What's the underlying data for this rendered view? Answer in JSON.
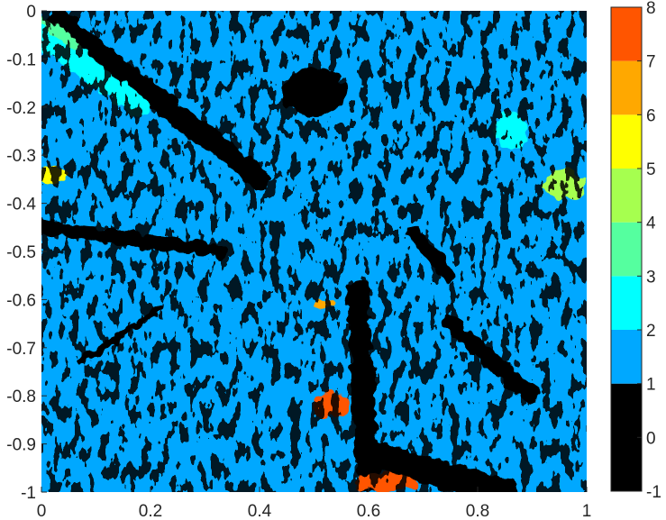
{
  "chart_data": {
    "type": "heatmap",
    "title": "",
    "xlabel": "",
    "ylabel": "",
    "xlim": [
      0,
      1
    ],
    "ylim": [
      -1,
      0
    ],
    "x_ticks": [
      "0",
      "0.2",
      "0.4",
      "0.6",
      "0.8",
      "1"
    ],
    "y_ticks": [
      "0",
      "-0.1",
      "-0.2",
      "-0.3",
      "-0.4",
      "-0.5",
      "-0.6",
      "-0.7",
      "-0.8",
      "-0.9",
      "-1"
    ],
    "grid": false,
    "colorbar": {
      "range": [
        -1,
        8
      ],
      "ticks": [
        "8",
        "7",
        "6",
        "5",
        "4",
        "3",
        "2",
        "1",
        "0",
        "-1"
      ],
      "levels": [
        {
          "from": -1,
          "to": 1,
          "color": "#000000"
        },
        {
          "from": 1,
          "to": 2,
          "color": "#00a8ff"
        },
        {
          "from": 2,
          "to": 3,
          "color": "#00ffff"
        },
        {
          "from": 3,
          "to": 4,
          "color": "#55ff9f"
        },
        {
          "from": 4,
          "to": 5,
          "color": "#a6ff4f"
        },
        {
          "from": 5,
          "to": 6,
          "color": "#ffff00"
        },
        {
          "from": 6,
          "to": 7,
          "color": "#ffa800"
        },
        {
          "from": 7,
          "to": 8,
          "color": "#ff5500"
        }
      ]
    },
    "dominant_level": {
      "value_range": [
        1,
        2
      ],
      "color": "#00a8ff"
    },
    "regions": [
      {
        "level": "black",
        "color": "#000000",
        "shape": "band",
        "points": [
          [
            0.03,
            -0.02
          ],
          [
            0.4,
            -0.35
          ]
        ],
        "width": 0.04
      },
      {
        "level": "black",
        "color": "#000000",
        "shape": "band",
        "points": [
          [
            0.0,
            -0.45
          ],
          [
            0.33,
            -0.5
          ]
        ],
        "width": 0.025
      },
      {
        "level": "black",
        "color": "#000000",
        "shape": "blob",
        "center": [
          0.5,
          -0.17
        ],
        "radius": [
          0.06,
          0.05
        ]
      },
      {
        "level": "black",
        "color": "#000000",
        "shape": "band",
        "points": [
          [
            0.58,
            -0.58
          ],
          [
            0.6,
            -0.98
          ]
        ],
        "width": 0.04
      },
      {
        "level": "black",
        "color": "#000000",
        "shape": "band",
        "points": [
          [
            0.6,
            -0.92
          ],
          [
            0.85,
            -1.0
          ]
        ],
        "width": 0.05
      },
      {
        "level": "black",
        "color": "#000000",
        "shape": "band",
        "points": [
          [
            0.07,
            -0.73
          ],
          [
            0.22,
            -0.62
          ]
        ],
        "width": 0.012
      },
      {
        "level": "black",
        "color": "#000000",
        "shape": "band",
        "points": [
          [
            0.75,
            -0.65
          ],
          [
            0.9,
            -0.8
          ]
        ],
        "width": 0.03
      },
      {
        "level": "black",
        "color": "#000000",
        "shape": "band",
        "points": [
          [
            0.68,
            -0.46
          ],
          [
            0.75,
            -0.55
          ]
        ],
        "width": 0.025
      },
      {
        "level": "cyan",
        "color": "#00ffff",
        "shape": "band",
        "points": [
          [
            0.0,
            -0.05
          ],
          [
            0.18,
            -0.2
          ]
        ],
        "width": 0.04
      },
      {
        "level": "green",
        "color": "#55ff9f",
        "shape": "band",
        "points": [
          [
            0.0,
            -0.02
          ],
          [
            0.06,
            -0.07
          ]
        ],
        "width": 0.02
      },
      {
        "level": "cyan",
        "color": "#00ffff",
        "shape": "blob",
        "center": [
          0.86,
          -0.25
        ],
        "radius": [
          0.03,
          0.04
        ]
      },
      {
        "level": "lime",
        "color": "#a6ff4f",
        "shape": "blob",
        "center": [
          0.96,
          -0.36
        ],
        "radius": [
          0.04,
          0.03
        ]
      },
      {
        "level": "yellow",
        "color": "#ffff00",
        "shape": "blob",
        "center": [
          0.02,
          -0.34
        ],
        "radius": [
          0.025,
          0.02
        ]
      },
      {
        "level": "orange",
        "color": "#ffa800",
        "shape": "blob",
        "center": [
          0.52,
          -0.61
        ],
        "radius": [
          0.02,
          0.01
        ]
      },
      {
        "level": "red",
        "color": "#ff5500",
        "shape": "blob",
        "center": [
          0.53,
          -0.82
        ],
        "radius": [
          0.035,
          0.025
        ]
      },
      {
        "level": "red",
        "color": "#ff5500",
        "shape": "blob",
        "center": [
          0.63,
          -0.98
        ],
        "radius": [
          0.06,
          0.02
        ]
      }
    ]
  }
}
